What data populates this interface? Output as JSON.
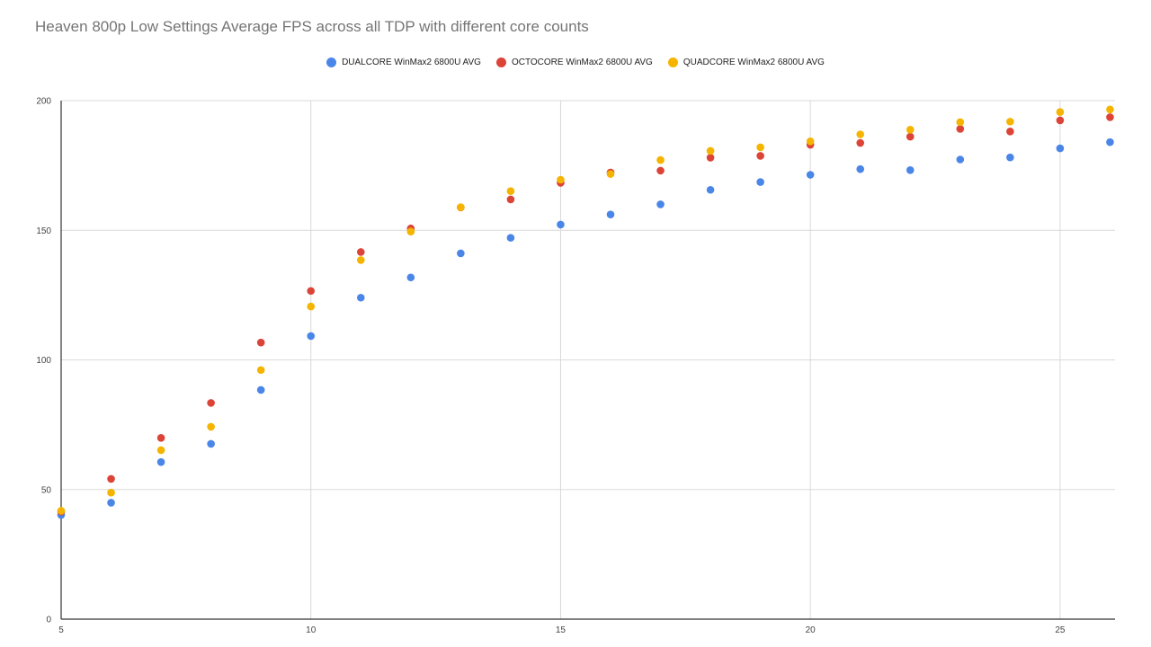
{
  "chart_data": {
    "type": "scatter",
    "title": "Heaven 800p Low Settings Average FPS across all TDP with different core counts",
    "xlabel": "",
    "ylabel": "",
    "xlim": [
      5,
      26.1
    ],
    "ylim": [
      0,
      200
    ],
    "x_ticks": [
      5,
      10,
      15,
      20,
      25
    ],
    "y_ticks": [
      0,
      50,
      100,
      150,
      200
    ],
    "grid": true,
    "legend_position": "top",
    "x": [
      5,
      6,
      7,
      8,
      9,
      10,
      11,
      12,
      13,
      14,
      15,
      16,
      17,
      18,
      19,
      20,
      21,
      22,
      23,
      24,
      25,
      26
    ],
    "series": [
      {
        "name": "DUALCORE WinMax2 6800U AVG",
        "color": "#4a86e8",
        "values": [
          40.2,
          44.9,
          60.6,
          67.6,
          88.4,
          109.2,
          124.0,
          131.8,
          141.1,
          147.1,
          152.2,
          156.1,
          160.0,
          165.6,
          168.6,
          171.4,
          173.6,
          173.2,
          177.3,
          178.1,
          181.6,
          184.0
        ]
      },
      {
        "name": "OCTOCORE WinMax2 6800U AVG",
        "color": "#db4437",
        "values": [
          41.5,
          54.1,
          69.9,
          83.4,
          106.7,
          126.6,
          141.6,
          150.7,
          158.8,
          161.9,
          168.3,
          172.3,
          173.0,
          178.0,
          178.7,
          183.0,
          183.7,
          186.1,
          189.1,
          188.1,
          192.4,
          193.6
        ]
      },
      {
        "name": "QUADCORE WinMax2 6800U AVG",
        "color": "#f4b400",
        "values": [
          41.8,
          48.8,
          65.2,
          74.2,
          96.1,
          120.6,
          138.5,
          149.5,
          158.9,
          165.1,
          169.5,
          171.7,
          177.1,
          180.6,
          182.0,
          184.3,
          187.0,
          188.8,
          191.7,
          191.9,
          195.6,
          196.6
        ]
      }
    ]
  }
}
